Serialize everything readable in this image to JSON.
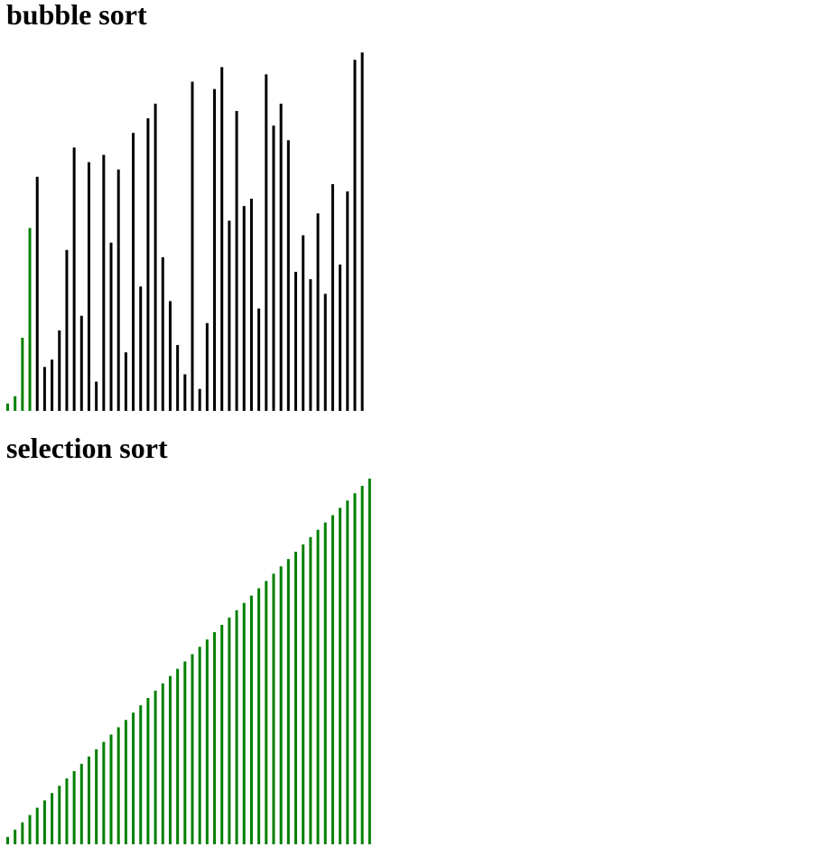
{
  "colors": {
    "sorted": "#008000",
    "unsorted": "#000000",
    "background": "#ffffff"
  },
  "chart_data": [
    {
      "type": "bar",
      "title": "bubble sort",
      "ylim": [
        0,
        50
      ],
      "values": [
        1,
        2,
        10,
        25,
        32,
        6,
        7,
        11,
        22,
        36,
        13,
        34,
        4,
        35,
        23,
        33,
        8,
        38,
        17,
        40,
        42,
        21,
        15,
        9,
        5,
        45,
        3,
        12,
        44,
        47,
        26,
        41,
        28,
        29,
        14,
        46,
        39,
        42,
        37,
        19,
        24,
        18,
        27,
        16,
        31,
        20,
        30,
        48,
        49
      ],
      "sorted_count": 4
    },
    {
      "type": "bar",
      "title": "selection sort",
      "ylim": [
        0,
        50
      ],
      "values": [
        1,
        2,
        3,
        4,
        5,
        6,
        7,
        8,
        9,
        10,
        11,
        12,
        13,
        14,
        15,
        16,
        17,
        18,
        19,
        20,
        21,
        22,
        23,
        24,
        25,
        26,
        27,
        28,
        29,
        30,
        31,
        32,
        33,
        34,
        35,
        36,
        37,
        38,
        39,
        40,
        41,
        42,
        43,
        44,
        45,
        46,
        47,
        48,
        49,
        50
      ],
      "sorted_count": 50
    }
  ]
}
